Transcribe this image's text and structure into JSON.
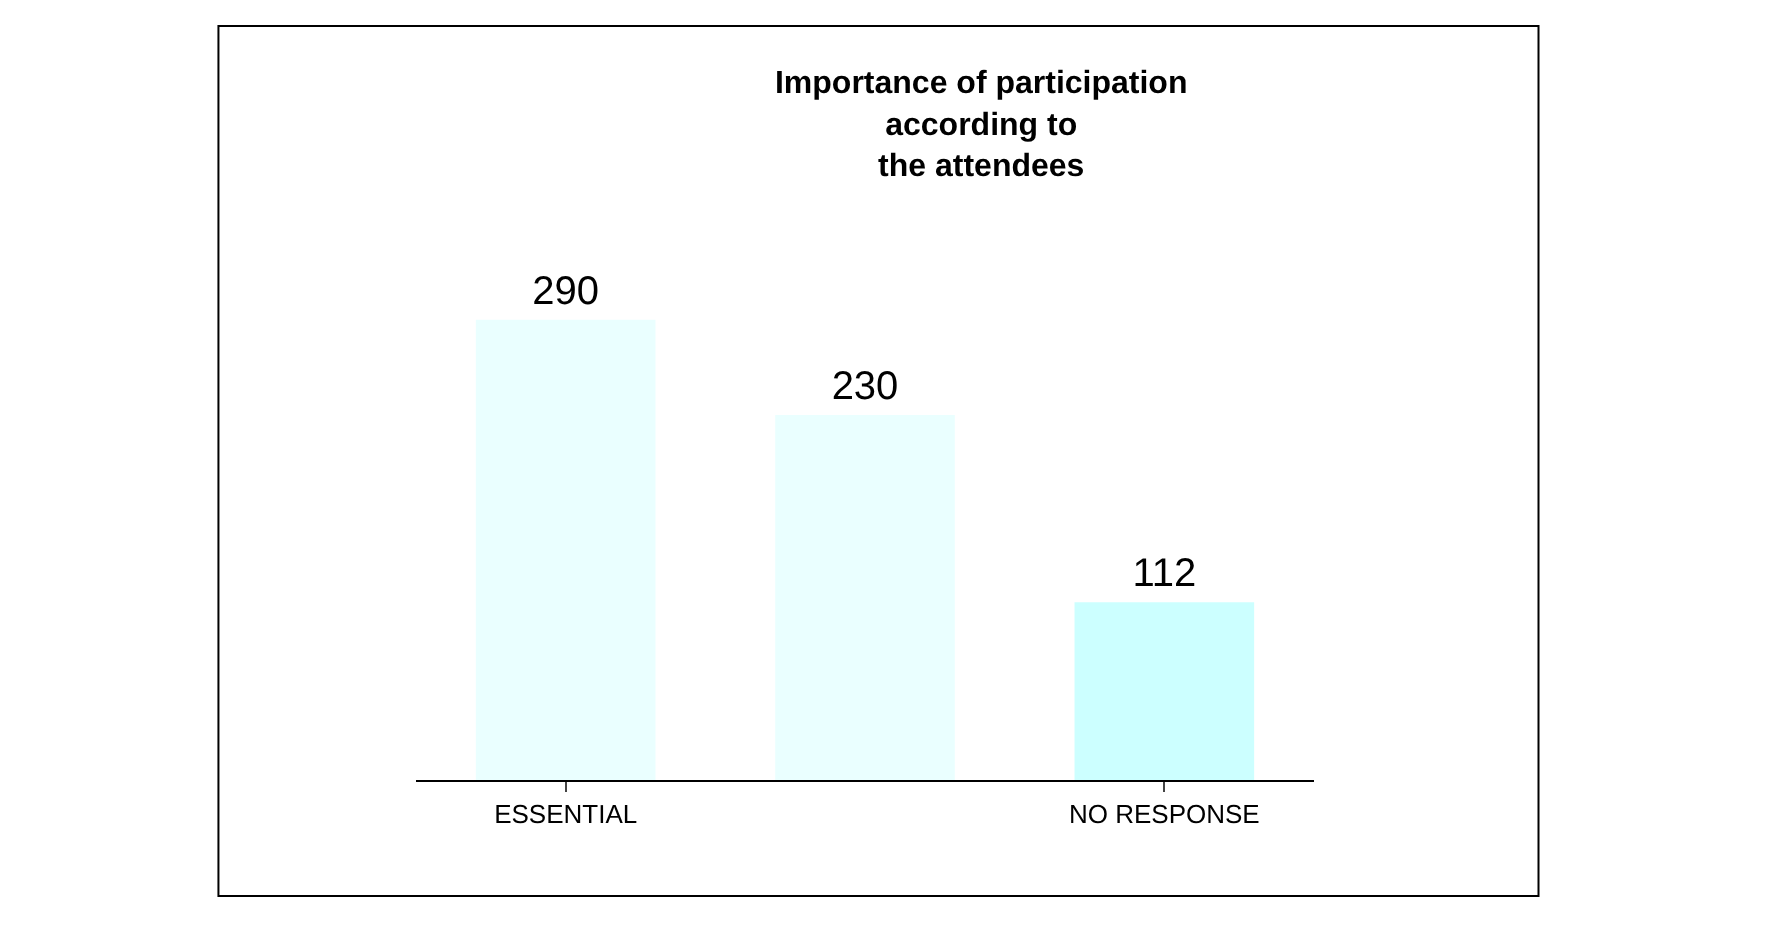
{
  "chart_data": {
    "type": "bar",
    "title": "Importance of participation\naccording to\nthe attendees",
    "categories": [
      "ESSENTIAL",
      null,
      "NO RESPONSE"
    ],
    "values": [
      290,
      230,
      112
    ],
    "colors": [
      "#eaffff",
      "#eaffff",
      "#ccffff"
    ],
    "data_labels": true
  }
}
